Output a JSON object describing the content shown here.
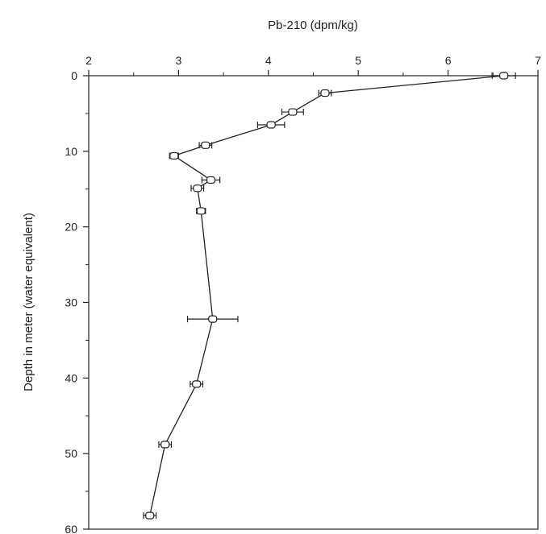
{
  "chart_data": {
    "type": "scatter",
    "title": "",
    "xlabel": "Pb-210 (dpm/kg)",
    "ylabel": "Depth in meter (water equivalent)",
    "x_axis_position": "top",
    "y_axis_inverted": true,
    "xlim": [
      2,
      7
    ],
    "ylim": [
      0,
      60
    ],
    "x_ticks": [
      "2",
      "3",
      "4",
      "5",
      "6",
      "7"
    ],
    "y_ticks": [
      "0",
      "10",
      "20",
      "30",
      "40",
      "50",
      "60"
    ],
    "grid": false,
    "legend": "none",
    "series": [
      {
        "points": [
          {
            "x": 6.62,
            "y": 0.0,
            "xerr": 0.13
          },
          {
            "x": 4.63,
            "y": 2.3,
            "xerr": 0.07
          },
          {
            "x": 4.27,
            "y": 4.8,
            "xerr": 0.12
          },
          {
            "x": 4.03,
            "y": 6.5,
            "xerr": 0.15
          },
          {
            "x": 3.3,
            "y": 9.2,
            "xerr": 0.07
          },
          {
            "x": 2.95,
            "y": 10.6,
            "xerr": 0.05
          },
          {
            "x": 3.36,
            "y": 13.8,
            "xerr": 0.1
          },
          {
            "x": 3.21,
            "y": 14.9,
            "xerr": 0.07
          },
          {
            "x": 3.25,
            "y": 17.9,
            "xerr": 0.05
          },
          {
            "x": 3.38,
            "y": 32.2,
            "xerr": 0.28
          },
          {
            "x": 3.2,
            "y": 40.8,
            "xerr": 0.07
          },
          {
            "x": 2.85,
            "y": 48.8,
            "xerr": 0.07
          },
          {
            "x": 2.68,
            "y": 58.2,
            "xerr": 0.07
          }
        ]
      }
    ]
  },
  "colors": {
    "ink": "#222222",
    "marker_fill": "#ffffff"
  }
}
